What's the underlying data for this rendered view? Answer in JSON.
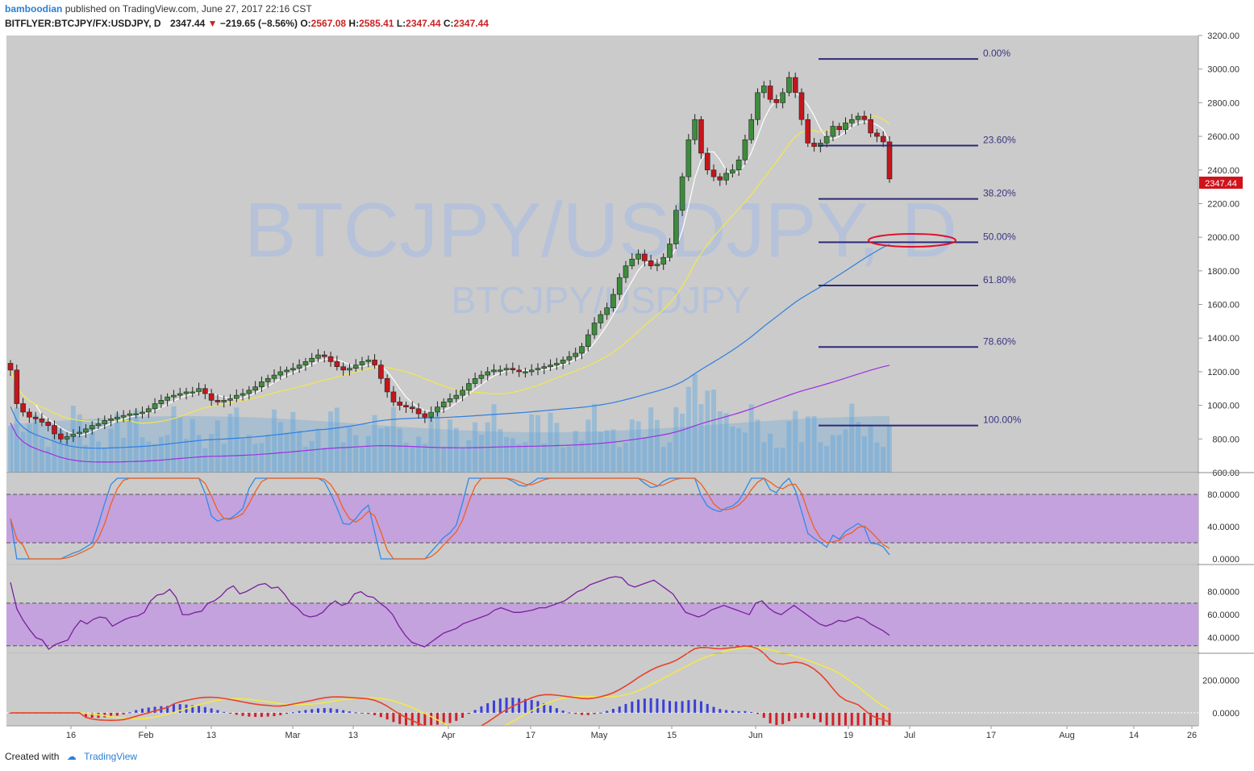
{
  "header": {
    "author": "bamboodian",
    "published": "published on TradingView.com, June 27, 2017 22:16 CST",
    "symbol": "BITFLYER:BTCJPY/FX:USDJPY, D",
    "last": "2347.44",
    "change": "−219.65 (−8.56%)",
    "o_label": "O:",
    "o": "2567.08",
    "h_label": "H:",
    "h": "2585.41",
    "l_label": "L:",
    "l": "2347.44",
    "c_label": "C:",
    "c": "2347.44"
  },
  "watermark": {
    "big": "BTCJPY/USDJPY, D",
    "small": "BTCJPY/USDJPY"
  },
  "footer": {
    "created_with": "Created with",
    "brand": "TradingView"
  },
  "colors": {
    "bull": "#3d8c3d",
    "bear": "#c4161c",
    "sma_fast": "#ffffff",
    "sma_20": "#f2e84a",
    "sma_50": "#2f7ee0",
    "sma_100": "#a02ee0",
    "fib": "#2e2a7a",
    "osc_band": "#c39be0",
    "stoch_k": "#2f8ae8",
    "stoch_d": "#f06020",
    "rsi": "#7a1fa0"
  },
  "chart_data": {
    "type": "candlestick",
    "price_axis": {
      "ticks": [
        "3200.00",
        "3000.00",
        "2800.00",
        "2600.00",
        "2400.00",
        "2200.00",
        "2000.00",
        "1800.00",
        "1600.00",
        "1400.00",
        "1200.00",
        "1000.00",
        "800.00",
        "600.00"
      ],
      "ylim": [
        600,
        3200
      ],
      "last_price_label": "2347.44"
    },
    "time_axis": {
      "ticks": [
        "16",
        "Feb",
        "13",
        "Mar",
        "13",
        "Apr",
        "17",
        "May",
        "15",
        "Jun",
        "19",
        "Jul",
        "17",
        "Aug",
        "14",
        "26"
      ]
    },
    "fibonacci": [
      {
        "level": "0.00%",
        "price": 3060
      },
      {
        "level": "23.60%",
        "price": 2545
      },
      {
        "level": "38.20%",
        "price": 2228
      },
      {
        "level": "50.00%",
        "price": 1970
      },
      {
        "level": "61.80%",
        "price": 1713
      },
      {
        "level": "78.60%",
        "price": 1347
      },
      {
        "level": "100.00%",
        "price": 880
      }
    ],
    "close_series": [
      1210,
      1010,
      960,
      930,
      920,
      900,
      880,
      830,
      800,
      815,
      830,
      840,
      860,
      880,
      890,
      910,
      920,
      930,
      940,
      950,
      950,
      960,
      980,
      1010,
      1030,
      1050,
      1060,
      1070,
      1080,
      1080,
      1100,
      1070,
      1030,
      1020,
      1030,
      1040,
      1060,
      1070,
      1090,
      1110,
      1140,
      1160,
      1180,
      1200,
      1210,
      1220,
      1240,
      1260,
      1280,
      1300,
      1290,
      1260,
      1230,
      1210,
      1220,
      1240,
      1260,
      1270,
      1240,
      1160,
      1080,
      1020,
      1000,
      990,
      980,
      950,
      930,
      960,
      990,
      1020,
      1040,
      1060,
      1090,
      1130,
      1160,
      1180,
      1200,
      1210,
      1210,
      1220,
      1210,
      1200,
      1200,
      1210,
      1220,
      1230,
      1240,
      1250,
      1270,
      1290,
      1310,
      1350,
      1420,
      1490,
      1540,
      1580,
      1660,
      1760,
      1830,
      1870,
      1900,
      1860,
      1830,
      1840,
      1880,
      1960,
      2160,
      2360,
      2580,
      2700,
      2500,
      2400,
      2360,
      2340,
      2380,
      2400,
      2460,
      2580,
      2700,
      2860,
      2900,
      2820,
      2800,
      2860,
      2950,
      2860,
      2700,
      2560,
      2540,
      2560,
      2600,
      2660,
      2640,
      2680,
      2700,
      2720,
      2700,
      2620,
      2600,
      2567,
      2347
    ],
    "moving_averages": [
      {
        "name": "SMA fast",
        "color": "#ffffff"
      },
      {
        "name": "SMA 20",
        "color": "#f2e84a"
      },
      {
        "name": "SMA 50",
        "color": "#2f7ee0"
      },
      {
        "name": "SMA 100",
        "color": "#a02ee0"
      }
    ],
    "stochastic": {
      "ticks": [
        "80.0000",
        "40.0000",
        "0.0000"
      ],
      "ylim": [
        0,
        100
      ],
      "bands": [
        20,
        80
      ],
      "k_last": 5,
      "d_last": 13
    },
    "rsi": {
      "ticks": [
        "80.0000",
        "60.0000",
        "40.0000"
      ],
      "ylim": [
        30,
        100
      ],
      "bands": [
        33,
        70
      ],
      "last": 42,
      "series": [
        88,
        65,
        55,
        47,
        40,
        38,
        30,
        34,
        36,
        38,
        48,
        55,
        52,
        56,
        58,
        57,
        50,
        53,
        56,
        58,
        59,
        62,
        72,
        77,
        78,
        82,
        75,
        60,
        60,
        62,
        63,
        70,
        72,
        76,
        82,
        85,
        78,
        80,
        83,
        86,
        87,
        83,
        84,
        78,
        70,
        66,
        60,
        58,
        59,
        62,
        68,
        72,
        68,
        70,
        78,
        80,
        76,
        75,
        70,
        66,
        60,
        50,
        42,
        36,
        34,
        32,
        36,
        40,
        44,
        46,
        48,
        52,
        54,
        56,
        58,
        60,
        64,
        66,
        64,
        62,
        62,
        63,
        64,
        66,
        66,
        68,
        70,
        72,
        76,
        80,
        82,
        86,
        88,
        90,
        92,
        93,
        92,
        86,
        84,
        86,
        88,
        90,
        86,
        82,
        78,
        70,
        62,
        60,
        58,
        60,
        64,
        66,
        68,
        66,
        64,
        62,
        60,
        70,
        72,
        66,
        62,
        60,
        64,
        68,
        64,
        60,
        56,
        52,
        50,
        52,
        55,
        54,
        56,
        58,
        56,
        52,
        49,
        46,
        42
      ]
    },
    "macd": {
      "ticks": [
        "200.0000",
        "0.0000"
      ],
      "ylim": [
        -60,
        340
      ]
    }
  }
}
